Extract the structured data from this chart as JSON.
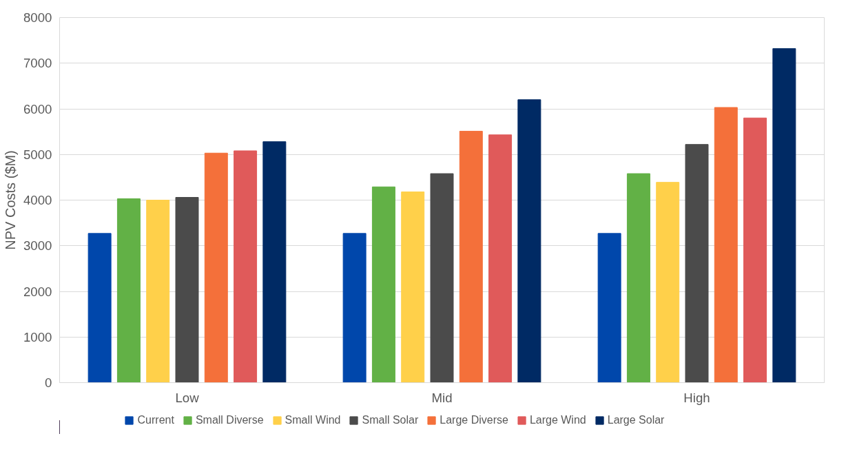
{
  "chart_data": {
    "type": "bar",
    "ylabel": "NPV Costs ($M)",
    "categories": [
      "Low",
      "Mid",
      "High"
    ],
    "series": [
      {
        "name": "Current",
        "color": "#0047ab",
        "values": [
          3270,
          3270,
          3270
        ]
      },
      {
        "name": "Small Diverse",
        "color": "#62b146",
        "values": [
          4030,
          4290,
          4580
        ]
      },
      {
        "name": "Small Wind",
        "color": "#ffd04a",
        "values": [
          4000,
          4180,
          4390
        ]
      },
      {
        "name": "Small Solar",
        "color": "#4b4b4b",
        "values": [
          4060,
          4580,
          5220
        ]
      },
      {
        "name": "Large Diverse",
        "color": "#f4703a",
        "values": [
          5030,
          5510,
          6030
        ]
      },
      {
        "name": "Large Wind",
        "color": "#e05a5a",
        "values": [
          5080,
          5430,
          5800
        ]
      },
      {
        "name": "Large Solar",
        "color": "#002a64",
        "values": [
          5280,
          6200,
          7320
        ]
      }
    ],
    "ylim": [
      0,
      8000
    ],
    "yticks": [
      0,
      1000,
      2000,
      3000,
      4000,
      5000,
      6000,
      7000,
      8000
    ],
    "grid": "y",
    "legend": "bottom"
  }
}
